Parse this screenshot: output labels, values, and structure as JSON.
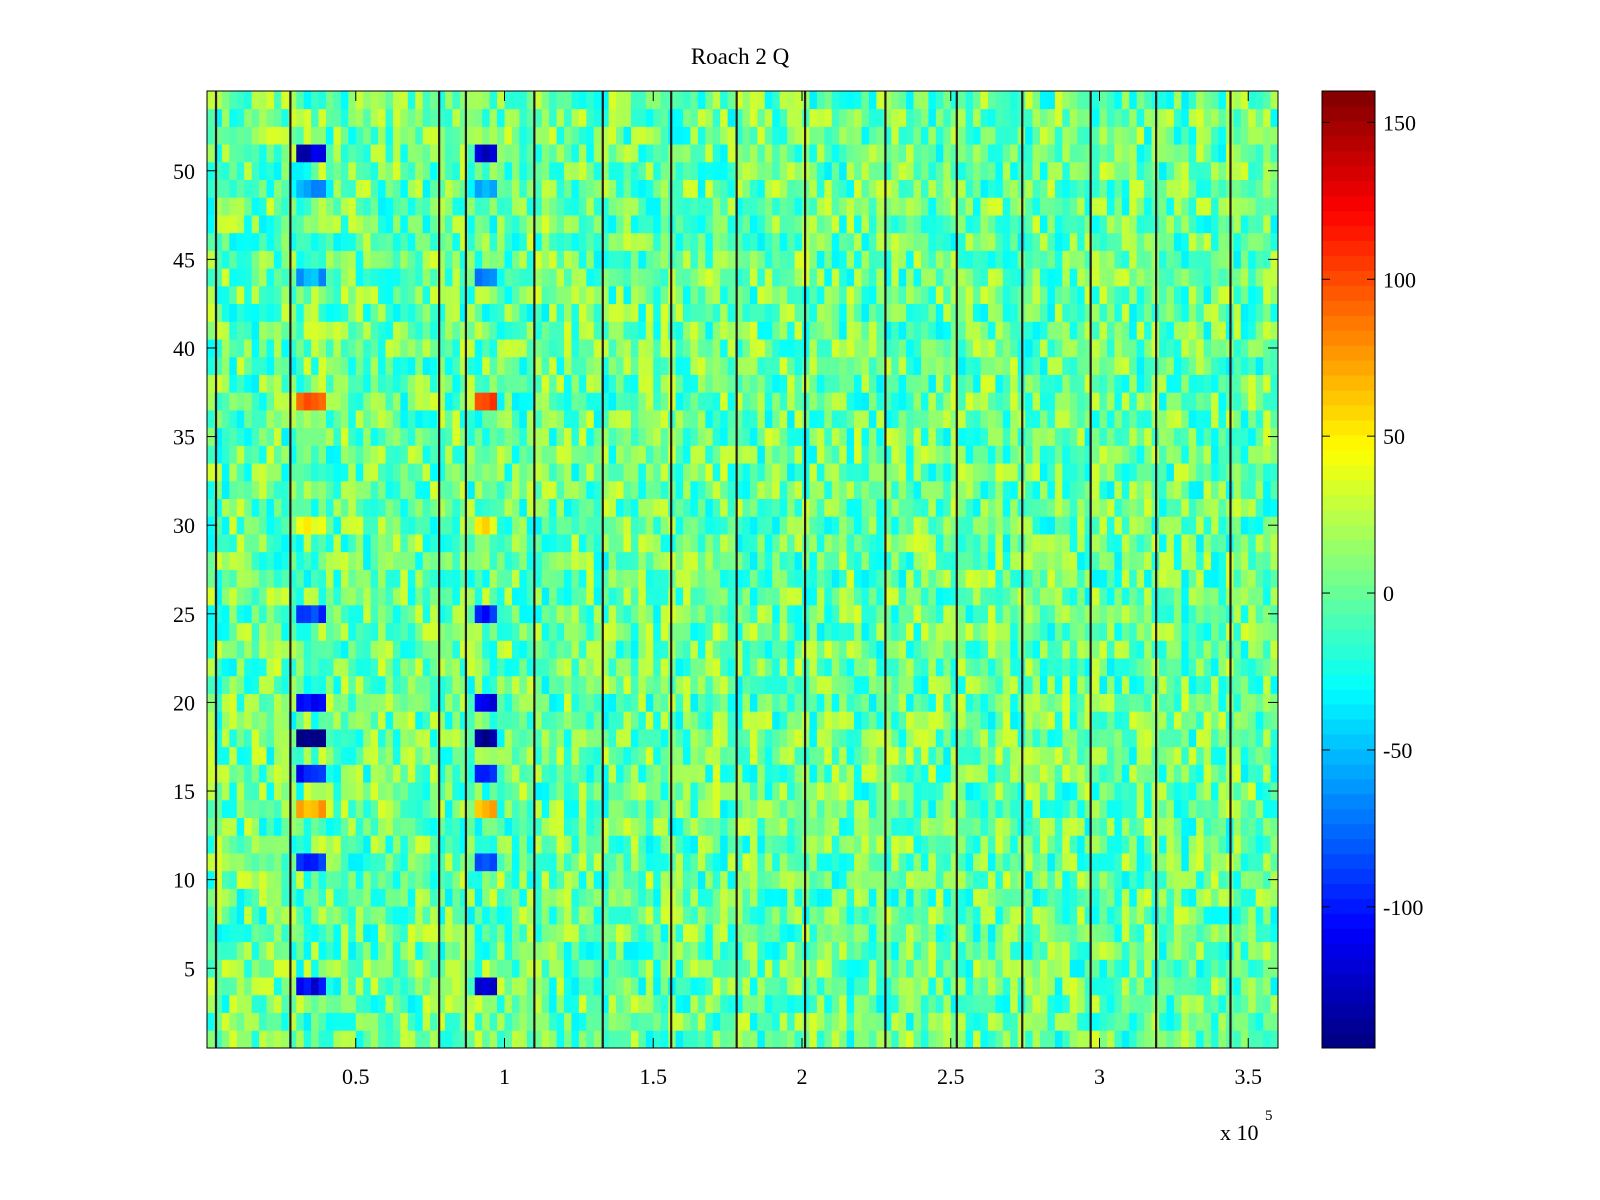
{
  "chart_data": {
    "type": "heatmap",
    "title": "Roach 2 Q",
    "xlabel": "",
    "ylabel": "",
    "x_multiplier_label": "x 10",
    "x_multiplier_exponent": "5",
    "xlim": [
      0,
      360000
    ],
    "ylim": [
      0.5,
      54.5
    ],
    "x_ticks": [
      0.5,
      1,
      1.5,
      2,
      2.5,
      3,
      3.5
    ],
    "x_tick_labels": [
      "0.5",
      "1",
      "1.5",
      "2",
      "2.5",
      "3",
      "3.5"
    ],
    "y_ticks": [
      5,
      10,
      15,
      20,
      25,
      30,
      35,
      40,
      45,
      50
    ],
    "y_tick_labels": [
      "5",
      "10",
      "15",
      "20",
      "25",
      "30",
      "35",
      "40",
      "45",
      "50"
    ],
    "colorbar": {
      "colormap": "jet",
      "clim": [
        -145,
        160
      ],
      "ticks": [
        150,
        100,
        50,
        0,
        -50,
        -100
      ],
      "tick_labels": [
        "150",
        "100",
        "50",
        "0",
        "-50",
        "-100"
      ]
    },
    "rows": 54,
    "background_value_range": [
      -35,
      35
    ],
    "dark_column_lines_x": [
      3000,
      28000,
      78000,
      87000,
      110000,
      133000,
      156000,
      178000,
      201000,
      228000,
      252000,
      274000,
      297000,
      319000,
      344000
    ],
    "anomaly_columns_x": [
      [
        30000,
        40000
      ],
      [
        88000,
        97000
      ]
    ],
    "anomaly_rows": [
      {
        "y": 51,
        "value": -125
      },
      {
        "y": 49,
        "value": -60
      },
      {
        "y": 44,
        "value": -60
      },
      {
        "y": 37,
        "value": 95
      },
      {
        "y": 30,
        "value": 45
      },
      {
        "y": 25,
        "value": -95
      },
      {
        "y": 20,
        "value": -110
      },
      {
        "y": 18,
        "value": -135
      },
      {
        "y": 16,
        "value": -100
      },
      {
        "y": 14,
        "value": 70
      },
      {
        "y": 11,
        "value": -95
      },
      {
        "y": 4,
        "value": -110
      }
    ],
    "grid": false,
    "legend": "none"
  }
}
